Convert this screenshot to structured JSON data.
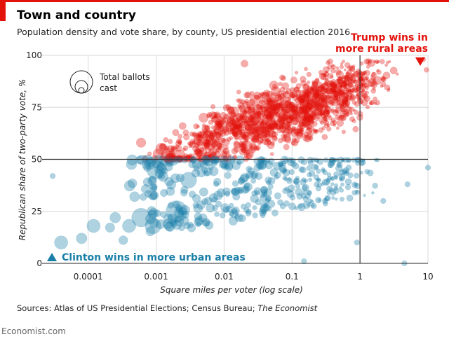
{
  "header": {
    "title": "Town and country",
    "subtitle": "Population density and vote share, by county, US presidential election 2016"
  },
  "footer": {
    "source_prefix": "Sources: Atlas of US Presidential Elections; Census Bureau; ",
    "source_italic": "The Economist",
    "brand": "Economist.com"
  },
  "colors": {
    "republican": "#e3120b",
    "democrat": "#1a7fa8",
    "accent_bar": "#e3120b",
    "grid": "#d9d9d9",
    "threshold_line": "#333333"
  },
  "chart_data": {
    "type": "scatter",
    "title": "Town and country",
    "subtitle": "Population density and vote share, by county, US presidential election 2016",
    "xlabel": "Square miles per voter (log scale)",
    "ylabel": "Republican share of two-party vote, %",
    "x_scale": "log",
    "xlim": [
      2e-05,
      10
    ],
    "ylim": [
      0,
      100
    ],
    "x_ticks": [
      0.0001,
      0.001,
      0.01,
      0.1,
      1,
      10
    ],
    "x_tick_labels": [
      "0.0001",
      "0.001",
      "0.01",
      "0.1",
      "1",
      "10"
    ],
    "y_ticks": [
      0,
      25,
      50,
      75,
      100
    ],
    "y_tick_labels": [
      "0",
      "25",
      "50",
      "75",
      "100"
    ],
    "reference_lines": {
      "y": 50,
      "x": 1
    },
    "grid": true,
    "size_legend": {
      "label_line1": "Total ballots",
      "label_line2": "cast",
      "placement": "top-left"
    },
    "annotations": {
      "trump_line1": "Trump wins in",
      "trump_line2": "more rural areas",
      "clinton": "Clinton wins in more urban areas"
    },
    "series": [
      {
        "name": "Trump",
        "color": "#e3120b",
        "generated_count": 1300,
        "points": [
          {
            "x": 0.0006,
            "y": 58,
            "size": 3
          },
          {
            "x": 0.0012,
            "y": 55,
            "size": 4
          },
          {
            "x": 0.0015,
            "y": 52,
            "size": 5
          },
          {
            "x": 0.02,
            "y": 96,
            "size": 2
          },
          {
            "x": 8.5,
            "y": 98,
            "size": 1
          },
          {
            "x": 9.5,
            "y": 93,
            "size": 1
          },
          {
            "x": 0.005,
            "y": 70,
            "size": 3
          },
          {
            "x": 0.04,
            "y": 80,
            "size": 3
          },
          {
            "x": 0.3,
            "y": 85,
            "size": 2
          }
        ]
      },
      {
        "name": "Clinton",
        "color": "#1a7fa8",
        "generated_count": 420,
        "points": [
          {
            "x": 4e-05,
            "y": 10,
            "size": 4
          },
          {
            "x": 8e-05,
            "y": 12,
            "size": 3
          },
          {
            "x": 0.00012,
            "y": 18,
            "size": 4
          },
          {
            "x": 0.00025,
            "y": 22,
            "size": 3
          },
          {
            "x": 0.0004,
            "y": 18,
            "size": 4
          },
          {
            "x": 0.0006,
            "y": 22,
            "size": 6
          },
          {
            "x": 0.0009,
            "y": 18,
            "size": 5
          },
          {
            "x": 0.002,
            "y": 25,
            "size": 7
          },
          {
            "x": 3e-05,
            "y": 42,
            "size": 1
          },
          {
            "x": 0.001,
            "y": 45,
            "size": 6
          },
          {
            "x": 0.003,
            "y": 40,
            "size": 5
          },
          {
            "x": 0.15,
            "y": 1,
            "size": 1
          },
          {
            "x": 0.9,
            "y": 10,
            "size": 1
          },
          {
            "x": 4.5,
            "y": 0,
            "size": 1
          },
          {
            "x": 10,
            "y": 46,
            "size": 1
          },
          {
            "x": 5,
            "y": 38,
            "size": 1
          },
          {
            "x": 2.2,
            "y": 30,
            "size": 1
          }
        ]
      }
    ]
  }
}
